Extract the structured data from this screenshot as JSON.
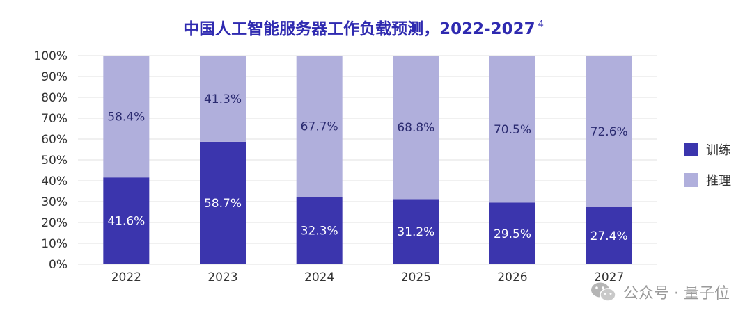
{
  "chart_data": {
    "type": "bar",
    "stacked": true,
    "title": "中国人工智能服务器工作负载预测，2022-2027",
    "title_superscript": "4",
    "categories": [
      "2022",
      "2023",
      "2024",
      "2025",
      "2026",
      "2027"
    ],
    "series": [
      {
        "name": "训练",
        "values": [
          41.6,
          58.7,
          32.3,
          31.2,
          29.5,
          27.4
        ],
        "labels": [
          "41.6%",
          "58.7%",
          "32.3%",
          "31.2%",
          "29.5%",
          "27.4%"
        ],
        "color": "#3b35ad"
      },
      {
        "name": "推理",
        "values": [
          58.4,
          41.3,
          67.7,
          68.8,
          70.5,
          72.6
        ],
        "labels": [
          "58.4%",
          "41.3%",
          "67.7%",
          "68.8%",
          "70.5%",
          "72.6%"
        ],
        "color": "#b0afdc"
      }
    ],
    "y_ticks": [
      "0%",
      "10%",
      "20%",
      "30%",
      "40%",
      "50%",
      "60%",
      "70%",
      "80%",
      "90%",
      "100%"
    ],
    "ylim": [
      0,
      100
    ],
    "grid": true,
    "legend_position": "right",
    "colors": {
      "title": "#2f2ab0",
      "axis_text": "#333333",
      "grid": "#e2e2e2",
      "label_on_dark": "#ffffff",
      "label_on_light": "#2a2a70"
    }
  },
  "watermark": {
    "text": "公众号 · 量子位",
    "icon": "wechat-icon"
  }
}
